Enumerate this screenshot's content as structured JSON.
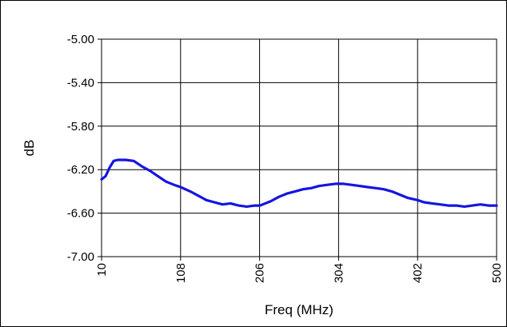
{
  "chart_data": {
    "type": "line",
    "title": "",
    "xlabel": "Freq (MHz)",
    "ylabel": "dB",
    "xlim": [
      10,
      500
    ],
    "ylim": [
      -7.0,
      -5.0
    ],
    "x_ticks": [
      10,
      108,
      206,
      304,
      402,
      500
    ],
    "x_tick_labels": [
      "10",
      "108",
      "206",
      "304",
      "402",
      "500"
    ],
    "y_ticks": [
      -5.0,
      -5.4,
      -5.8,
      -6.2,
      -6.6,
      -7.0
    ],
    "y_tick_labels": [
      "-5.00",
      "-5.40",
      "-5.80",
      "-6.20",
      "-6.60",
      "-7.00"
    ],
    "grid": true,
    "legend": "none",
    "colors": {
      "line": "#1515e0",
      "grid": "#000000",
      "background": "#ffffff"
    },
    "series": [
      {
        "color": "#1515e0",
        "x": [
          10,
          15,
          20,
          25,
          30,
          40,
          50,
          60,
          70,
          80,
          90,
          100,
          108,
          120,
          130,
          140,
          150,
          160,
          170,
          180,
          190,
          200,
          206,
          210,
          220,
          230,
          240,
          250,
          260,
          270,
          280,
          290,
          300,
          304,
          310,
          320,
          330,
          340,
          350,
          360,
          370,
          380,
          390,
          402,
          410,
          420,
          430,
          440,
          450,
          460,
          470,
          480,
          490,
          500
        ],
        "y": [
          -6.29,
          -6.26,
          -6.18,
          -6.12,
          -6.11,
          -6.11,
          -6.12,
          -6.17,
          -6.21,
          -6.26,
          -6.31,
          -6.34,
          -6.36,
          -6.4,
          -6.44,
          -6.48,
          -6.5,
          -6.52,
          -6.51,
          -6.53,
          -6.54,
          -6.53,
          -6.53,
          -6.52,
          -6.49,
          -6.45,
          -6.42,
          -6.4,
          -6.38,
          -6.37,
          -6.35,
          -6.34,
          -6.33,
          -6.33,
          -6.33,
          -6.34,
          -6.35,
          -6.36,
          -6.37,
          -6.38,
          -6.4,
          -6.43,
          -6.46,
          -6.48,
          -6.5,
          -6.51,
          -6.52,
          -6.53,
          -6.53,
          -6.54,
          -6.53,
          -6.52,
          -6.53,
          -6.53
        ]
      }
    ]
  }
}
